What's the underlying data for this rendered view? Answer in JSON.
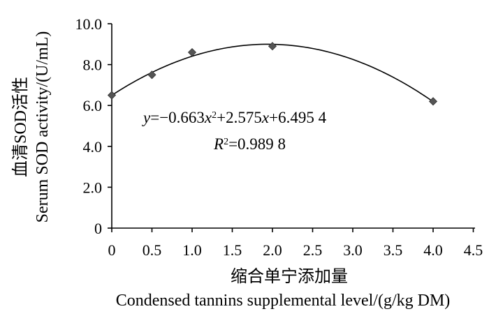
{
  "chart_data": {
    "type": "scatter",
    "title": "",
    "ylabel_cn": "血清SOD活性",
    "ylabel_en": "Serum SOD activity/(U/mL)",
    "xlabel_cn": "缩合单宁添加量",
    "xlabel_en": "Condensed tannins supplemental level/(g/kg DM)",
    "xlim": [
      0,
      4.5
    ],
    "ylim": [
      0,
      10
    ],
    "x_ticks": [
      "0",
      "0.5",
      "1.0",
      "1.5",
      "2.0",
      "2.5",
      "3.0",
      "3.5",
      "4.0",
      "4.5"
    ],
    "y_ticks": [
      "0",
      "2.0",
      "4.0",
      "6.0",
      "8.0",
      "10.0"
    ],
    "grid": false,
    "series": [
      {
        "marker": "diamond",
        "x": [
          0,
          0.5,
          1.0,
          2.0,
          4.0
        ],
        "y": [
          6.5,
          7.5,
          8.6,
          8.9,
          6.2
        ]
      }
    ],
    "trendline": {
      "type": "polynomial",
      "coefficients": [
        -0.663,
        2.575,
        6.4954
      ],
      "x_range": [
        0,
        4.0
      ]
    },
    "annotations": {
      "equation_parts": [
        "y",
        "=−0.663",
        "x",
        "2",
        "+2.575",
        "x",
        "+6.495 4"
      ],
      "r2_parts": [
        "R",
        "2",
        "=0.989 8"
      ]
    }
  }
}
